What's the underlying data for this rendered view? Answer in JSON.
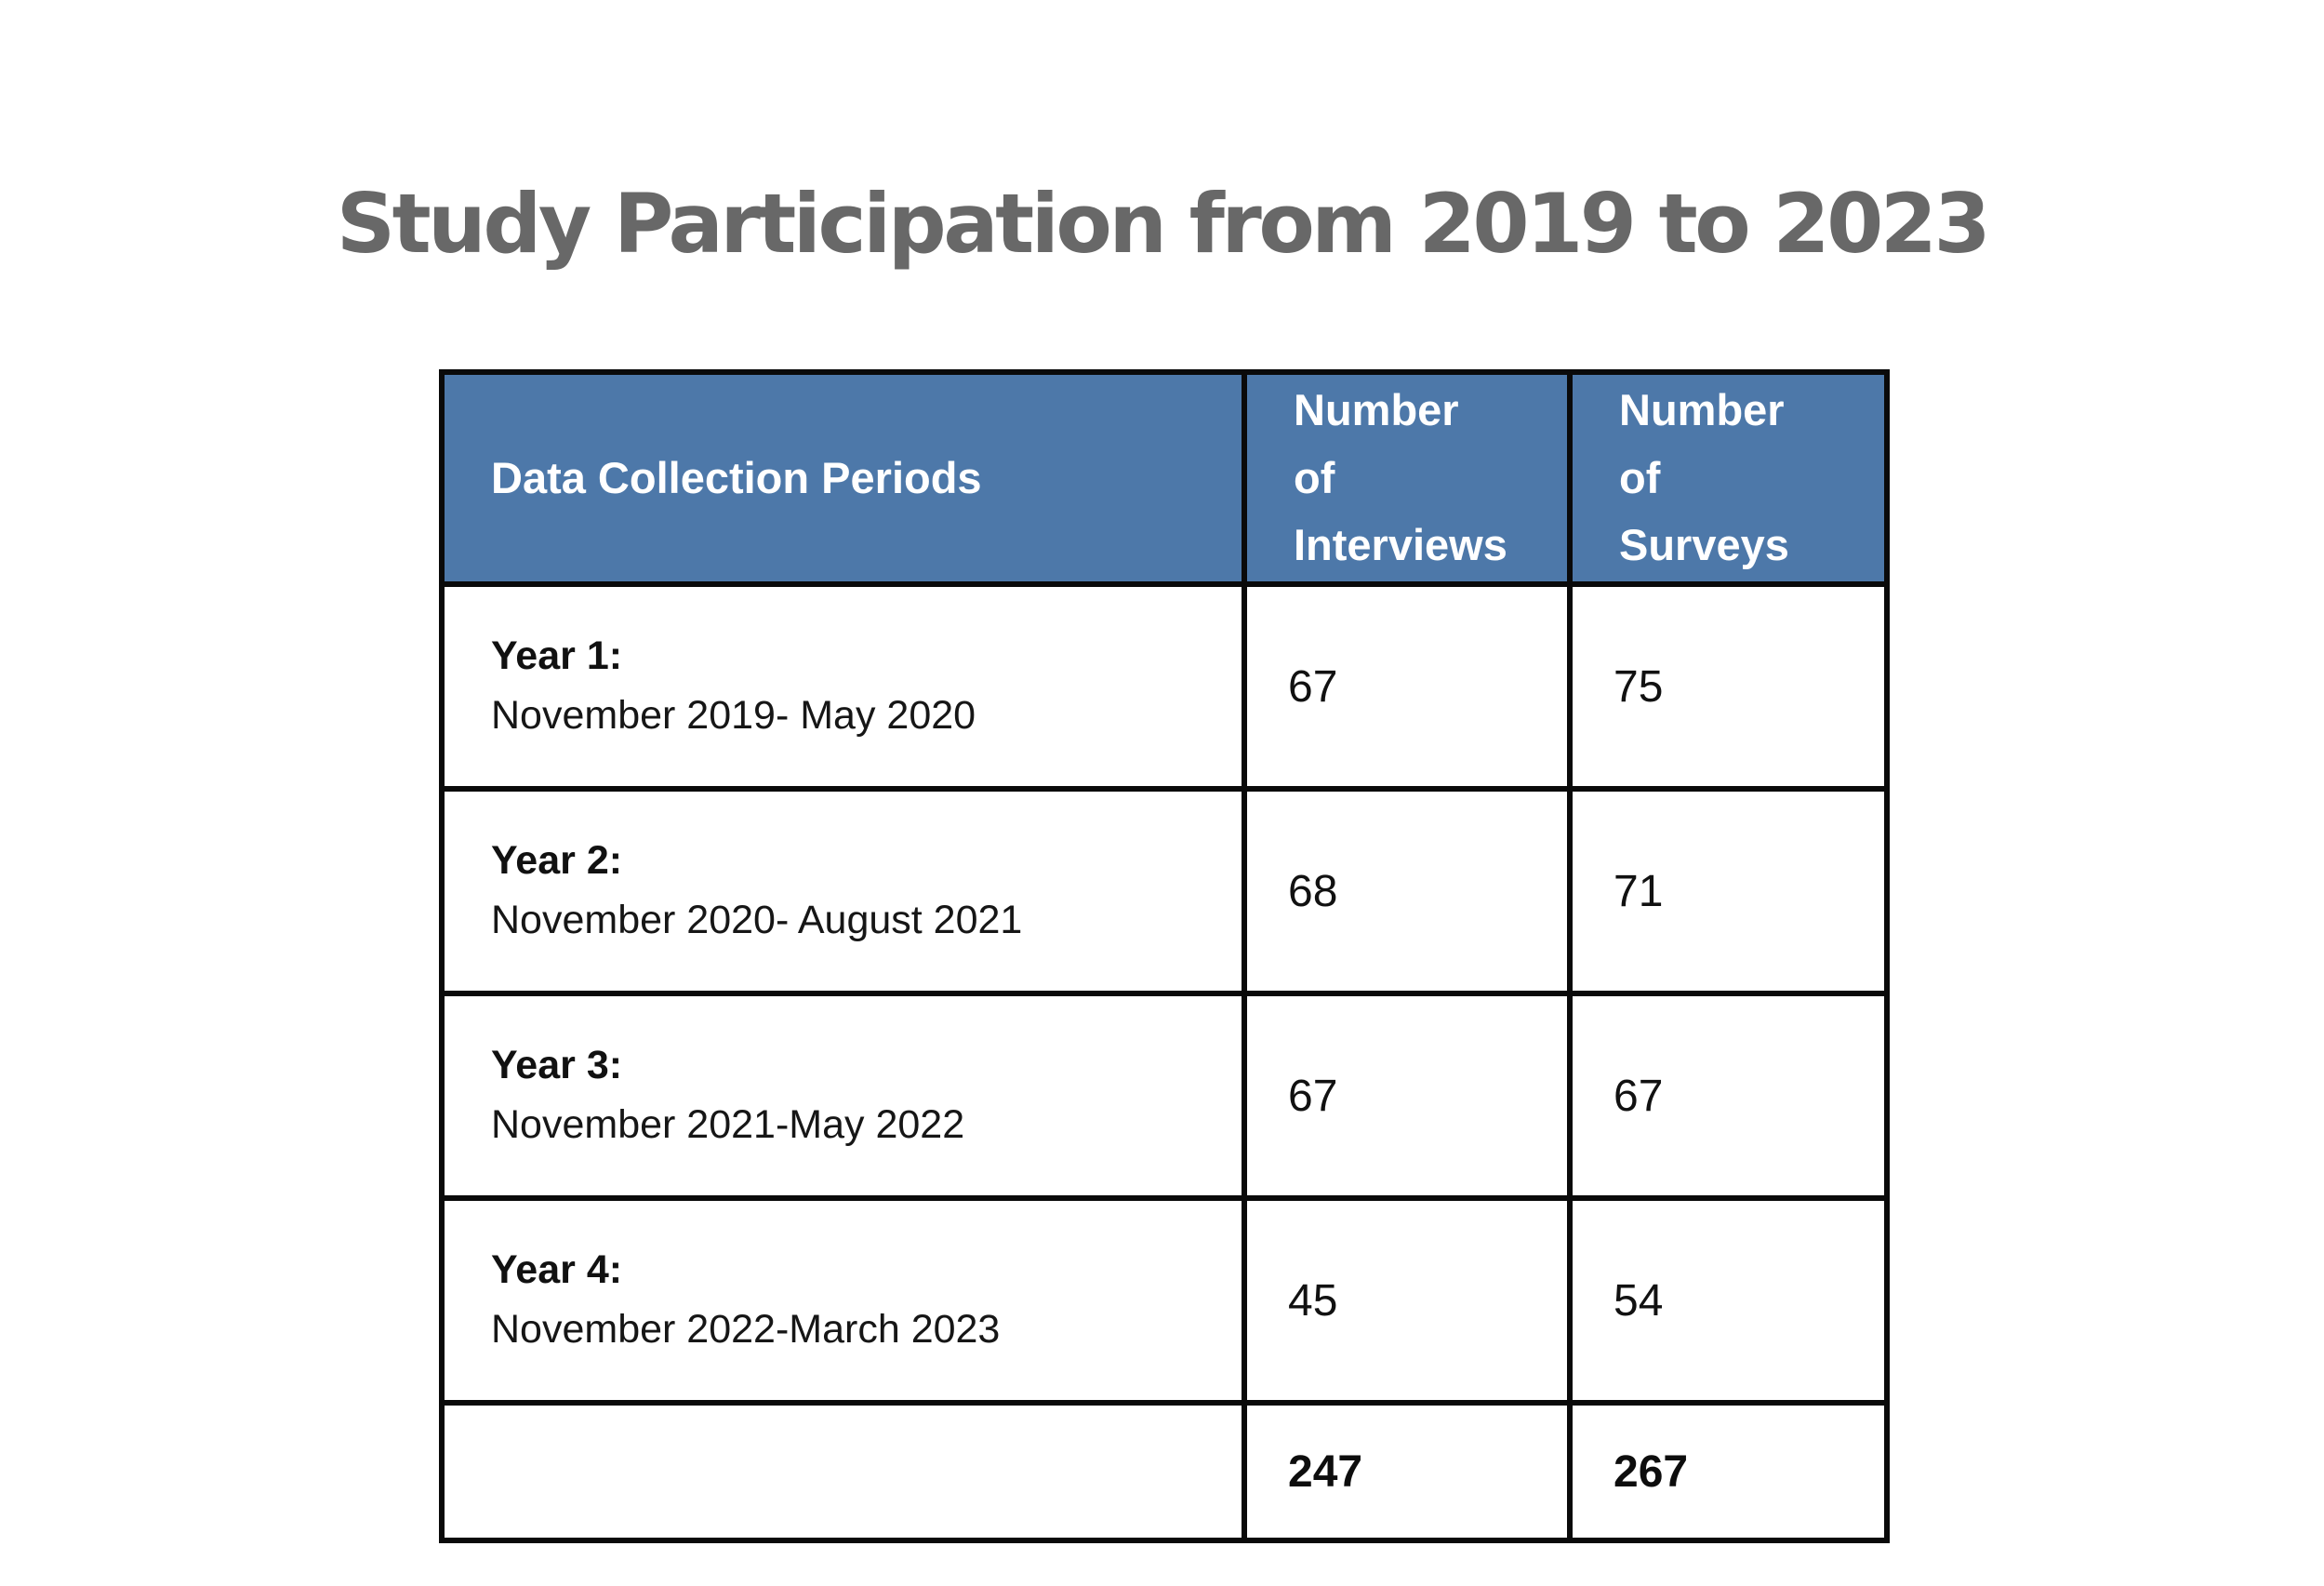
{
  "title": "Study Participation from 2019 to 2023",
  "colors": {
    "title_text": "#686868",
    "header_background": "#4d78a9",
    "header_text": "#ffffff",
    "border": "#0a0a0a",
    "body_text": "#161616",
    "page_background": "#ffffff"
  },
  "table": {
    "header": {
      "periods": "Data Collection Periods",
      "interviews": "Number of Interviews",
      "surveys": "Number of Surveys"
    },
    "rows": [
      {
        "label": "Year 1:",
        "dates": "November 2019- May 2020",
        "interviews": "67",
        "surveys": "75"
      },
      {
        "label": "Year 2:",
        "dates": "November 2020- August 2021",
        "interviews": "68",
        "surveys": "71"
      },
      {
        "label": "Year 3:",
        "dates": "November 2021-May 2022",
        "interviews": "67",
        "surveys": "67"
      },
      {
        "label": "Year 4:",
        "dates": "November 2022-March 2023",
        "interviews": "45",
        "surveys": "54"
      }
    ],
    "totals": {
      "periods": "",
      "interviews": "247",
      "surveys": "267"
    }
  },
  "chart_data": {
    "type": "table",
    "title": "Study Participation from 2019 to 2023",
    "columns": [
      "Data Collection Periods",
      "Number of Interviews",
      "Number of Surveys"
    ],
    "rows": [
      [
        "Year 1: November 2019- May 2020",
        67,
        75
      ],
      [
        "Year 2: November 2020- August 2021",
        68,
        71
      ],
      [
        "Year 3: November 2021-May 2022",
        67,
        67
      ],
      [
        "Year 4: November 2022-March 2023",
        45,
        54
      ],
      [
        "",
        247,
        267
      ]
    ],
    "layout": {
      "header_fill": "#4d78a9",
      "header_text_color": "#ffffff",
      "grid": "on",
      "totals_row_bold": true
    }
  }
}
